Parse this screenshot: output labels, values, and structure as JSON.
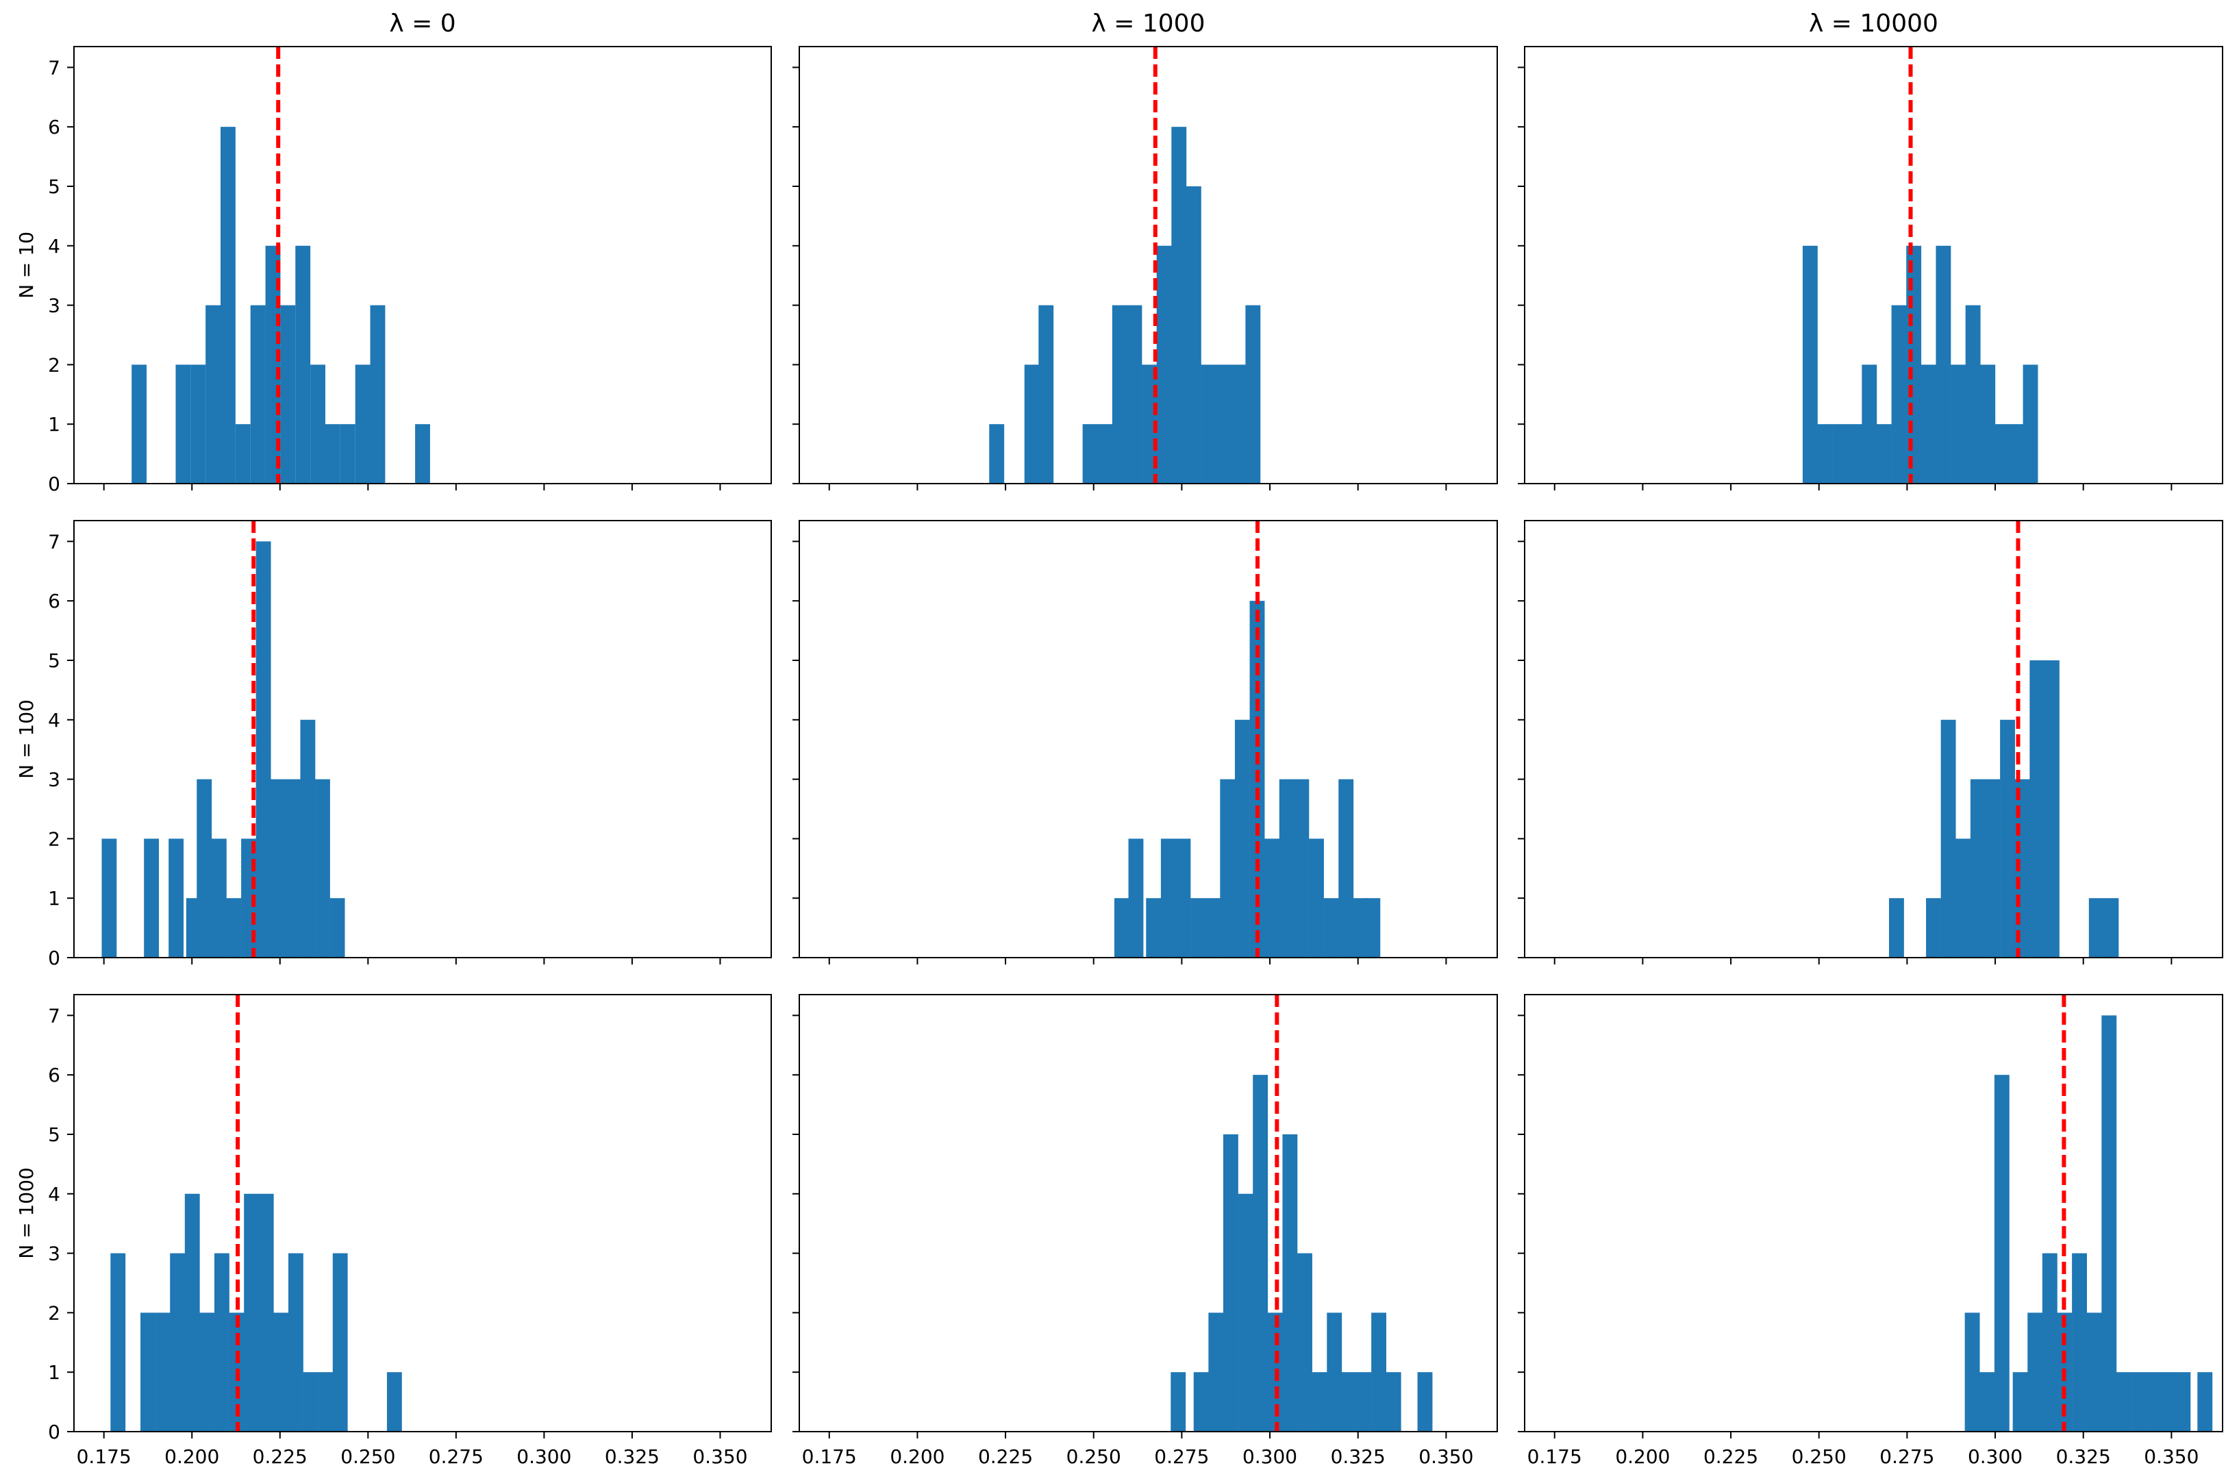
{
  "figure": {
    "column_titles": [
      "λ = 0",
      "λ = 1000",
      "λ = 10000"
    ],
    "row_labels": [
      "N = 10",
      "N = 100",
      "N = 1000"
    ],
    "x_tick_labels": [
      "0.175",
      "0.200",
      "0.225",
      "0.250",
      "0.275",
      "0.300",
      "0.325",
      "0.350"
    ],
    "y_tick_labels": [
      "0",
      "1",
      "2",
      "3",
      "4",
      "5",
      "6",
      "7"
    ],
    "colors": {
      "bar": "#1f77b4",
      "mean_line": "#ff0000",
      "axis": "#000000"
    }
  },
  "chart_data": [
    {
      "type": "bar",
      "title": "λ = 0",
      "ylabel": "N = 10",
      "row": 0,
      "col": 0,
      "bin_width": 0.00425,
      "xlim": [
        0.1665,
        0.3645
      ],
      "ylim": [
        0,
        7.35
      ],
      "bins": [
        [
          0.185,
          2
        ],
        [
          0.1975,
          2
        ],
        [
          0.20175,
          2
        ],
        [
          0.206,
          3
        ],
        [
          0.21025,
          6
        ],
        [
          0.2145,
          1
        ],
        [
          0.21875,
          3
        ],
        [
          0.223,
          4
        ],
        [
          0.22725,
          3
        ],
        [
          0.2315,
          4
        ],
        [
          0.23575,
          2
        ],
        [
          0.24,
          1
        ],
        [
          0.24425,
          1
        ],
        [
          0.2485,
          2
        ],
        [
          0.25275,
          3
        ],
        [
          0.2655,
          1
        ]
      ],
      "mean": 0.2245
    },
    {
      "type": "bar",
      "title": "λ = 1000",
      "ylabel": "N = 10",
      "row": 0,
      "col": 1,
      "bin_width": 0.00425,
      "xlim": [
        0.1665,
        0.3645
      ],
      "ylim": [
        0,
        7.35
      ],
      "bins": [
        [
          0.2225,
          1
        ],
        [
          0.2325,
          2
        ],
        [
          0.2365,
          3
        ],
        [
          0.249,
          1
        ],
        [
          0.2532,
          1
        ],
        [
          0.2574,
          3
        ],
        [
          0.2616,
          3
        ],
        [
          0.2658,
          2
        ],
        [
          0.27,
          4
        ],
        [
          0.2742,
          6
        ],
        [
          0.2784,
          5
        ],
        [
          0.2826,
          2
        ],
        [
          0.2868,
          2
        ],
        [
          0.291,
          2
        ],
        [
          0.2952,
          3
        ]
      ],
      "mean": 0.2675
    },
    {
      "type": "bar",
      "title": "λ = 10000",
      "ylabel": "N = 10",
      "row": 0,
      "col": 2,
      "bin_width": 0.00425,
      "xlim": [
        0.1665,
        0.3645
      ],
      "ylim": [
        0,
        7.35
      ],
      "bins": [
        [
          0.2475,
          4
        ],
        [
          0.2517,
          1
        ],
        [
          0.2559,
          1
        ],
        [
          0.2601,
          1
        ],
        [
          0.2643,
          2
        ],
        [
          0.2685,
          1
        ],
        [
          0.2727,
          3
        ],
        [
          0.2769,
          4
        ],
        [
          0.2811,
          2
        ],
        [
          0.2853,
          4
        ],
        [
          0.2895,
          2
        ],
        [
          0.2937,
          3
        ],
        [
          0.2979,
          2
        ],
        [
          0.3021,
          1
        ],
        [
          0.3063,
          1
        ],
        [
          0.31,
          2
        ]
      ],
      "mean": 0.276
    },
    {
      "type": "bar",
      "title": "λ = 0",
      "ylabel": "N = 100",
      "row": 1,
      "col": 0,
      "bin_width": 0.00425,
      "xlim": [
        0.1665,
        0.3645
      ],
      "ylim": [
        0,
        7.35
      ],
      "bins": [
        [
          0.1765,
          2
        ],
        [
          0.1885,
          2
        ],
        [
          0.1955,
          2
        ],
        [
          0.2005,
          1
        ],
        [
          0.2035,
          3
        ],
        [
          0.2077,
          2
        ],
        [
          0.2119,
          1
        ],
        [
          0.2161,
          2
        ],
        [
          0.2203,
          7
        ],
        [
          0.2245,
          3
        ],
        [
          0.2287,
          3
        ],
        [
          0.2329,
          4
        ],
        [
          0.2371,
          3
        ],
        [
          0.2413,
          1
        ]
      ],
      "mean": 0.2175
    },
    {
      "type": "bar",
      "title": "λ = 1000",
      "ylabel": "N = 100",
      "row": 1,
      "col": 1,
      "bin_width": 0.00425,
      "xlim": [
        0.1665,
        0.3645
      ],
      "ylim": [
        0,
        7.35
      ],
      "bins": [
        [
          0.258,
          1
        ],
        [
          0.262,
          2
        ],
        [
          0.267,
          1
        ],
        [
          0.2712,
          2
        ],
        [
          0.2754,
          2
        ],
        [
          0.2796,
          1
        ],
        [
          0.2838,
          1
        ],
        [
          0.288,
          3
        ],
        [
          0.2922,
          4
        ],
        [
          0.2964,
          6
        ],
        [
          0.3006,
          2
        ],
        [
          0.3048,
          3
        ],
        [
          0.309,
          3
        ],
        [
          0.3132,
          2
        ],
        [
          0.3174,
          1
        ],
        [
          0.3216,
          3
        ],
        [
          0.3258,
          1
        ],
        [
          0.3292,
          1
        ]
      ],
      "mean": 0.2965
    },
    {
      "type": "bar",
      "title": "λ = 10000",
      "ylabel": "N = 100",
      "row": 1,
      "col": 2,
      "bin_width": 0.00425,
      "xlim": [
        0.1665,
        0.3645
      ],
      "ylim": [
        0,
        7.35
      ],
      "bins": [
        [
          0.272,
          1
        ],
        [
          0.2825,
          1
        ],
        [
          0.2867,
          4
        ],
        [
          0.2909,
          2
        ],
        [
          0.2951,
          3
        ],
        [
          0.2993,
          3
        ],
        [
          0.3035,
          4
        ],
        [
          0.3077,
          3
        ],
        [
          0.3119,
          5
        ],
        [
          0.3161,
          5
        ],
        [
          0.3287,
          1
        ],
        [
          0.3329,
          1
        ]
      ],
      "mean": 0.3065
    },
    {
      "type": "bar",
      "title": "λ = 0",
      "ylabel": "N = 1000",
      "row": 2,
      "col": 0,
      "bin_width": 0.00425,
      "xlim": [
        0.1665,
        0.3645
      ],
      "ylim": [
        0,
        7.35
      ],
      "bins": [
        [
          0.179,
          3
        ],
        [
          0.1875,
          2
        ],
        [
          0.1917,
          2
        ],
        [
          0.1959,
          3
        ],
        [
          0.2001,
          4
        ],
        [
          0.2043,
          2
        ],
        [
          0.2085,
          3
        ],
        [
          0.2127,
          2
        ],
        [
          0.2169,
          4
        ],
        [
          0.2211,
          4
        ],
        [
          0.2253,
          2
        ],
        [
          0.2295,
          3
        ],
        [
          0.2337,
          1
        ],
        [
          0.2379,
          1
        ],
        [
          0.2421,
          3
        ],
        [
          0.2575,
          1
        ]
      ],
      "mean": 0.213
    },
    {
      "type": "bar",
      "title": "λ = 1000",
      "ylabel": "N = 1000",
      "row": 2,
      "col": 1,
      "bin_width": 0.00425,
      "xlim": [
        0.1665,
        0.3645
      ],
      "ylim": [
        0,
        7.35
      ],
      "bins": [
        [
          0.274,
          1
        ],
        [
          0.2805,
          1
        ],
        [
          0.2847,
          2
        ],
        [
          0.2889,
          5
        ],
        [
          0.2931,
          4
        ],
        [
          0.2973,
          6
        ],
        [
          0.3015,
          2
        ],
        [
          0.3057,
          5
        ],
        [
          0.3099,
          3
        ],
        [
          0.3141,
          1
        ],
        [
          0.3183,
          2
        ],
        [
          0.3225,
          1
        ],
        [
          0.3267,
          1
        ],
        [
          0.3309,
          2
        ],
        [
          0.3351,
          1
        ],
        [
          0.344,
          1
        ]
      ],
      "mean": 0.302
    },
    {
      "type": "bar",
      "title": "λ = 10000",
      "ylabel": "N = 1000",
      "row": 2,
      "col": 2,
      "bin_width": 0.00425,
      "xlim": [
        0.1665,
        0.3645
      ],
      "ylim": [
        0,
        7.35
      ],
      "bins": [
        [
          0.2935,
          2
        ],
        [
          0.2977,
          1
        ],
        [
          0.3019,
          6
        ],
        [
          0.3071,
          1
        ],
        [
          0.3113,
          2
        ],
        [
          0.3155,
          3
        ],
        [
          0.3197,
          2
        ],
        [
          0.3239,
          3
        ],
        [
          0.3281,
          2
        ],
        [
          0.3323,
          7
        ],
        [
          0.3365,
          1
        ],
        [
          0.3407,
          1
        ],
        [
          0.3449,
          1
        ],
        [
          0.3491,
          1
        ],
        [
          0.3533,
          1
        ],
        [
          0.3595,
          1
        ]
      ],
      "mean": 0.3195
    }
  ]
}
